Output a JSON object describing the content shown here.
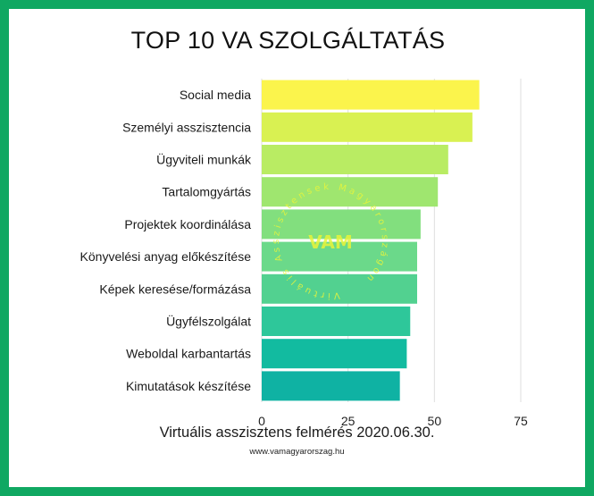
{
  "chart_data": {
    "type": "bar",
    "orientation": "horizontal",
    "title": "TOP 10 VA SZOLGÁLTATÁS",
    "categories": [
      "Social media",
      "Személyi asszisztencia",
      "Ügyviteli munkák",
      "Tartalomgyártás",
      "Projektek koordinálása",
      "Könyvelési anyag előkészítése",
      "Képek keresése/formázása",
      "Ügyfélszolgálat",
      "Weboldal karbantartás",
      "Kimutatások készítése"
    ],
    "values": [
      63,
      61,
      54,
      51,
      46,
      45,
      45,
      43,
      42,
      40
    ],
    "bar_colors": [
      "#fbf44c",
      "#d9f152",
      "#b9ec63",
      "#9fe66f",
      "#82df7e",
      "#6bd98a",
      "#52d190",
      "#2ec79a",
      "#12bba0",
      "#0fb2a3"
    ],
    "xlim": [
      0,
      75
    ],
    "xticks": [
      0,
      25,
      50,
      75
    ],
    "xtick_labels": [
      "0",
      "25",
      "50",
      "75"
    ],
    "grid": "vertical lines"
  },
  "watermark": {
    "logo_text": "VAM",
    "ring_text": "Virtuális Asszisztensek Magyarországon"
  },
  "footer": {
    "caption": "Virtuális asszisztens felmérés 2020.06.30.",
    "url": "www.vamagyarorszag.hu"
  },
  "colors": {
    "frame": "#10a862",
    "gridline": "#dedede",
    "background": "#ffffff"
  }
}
